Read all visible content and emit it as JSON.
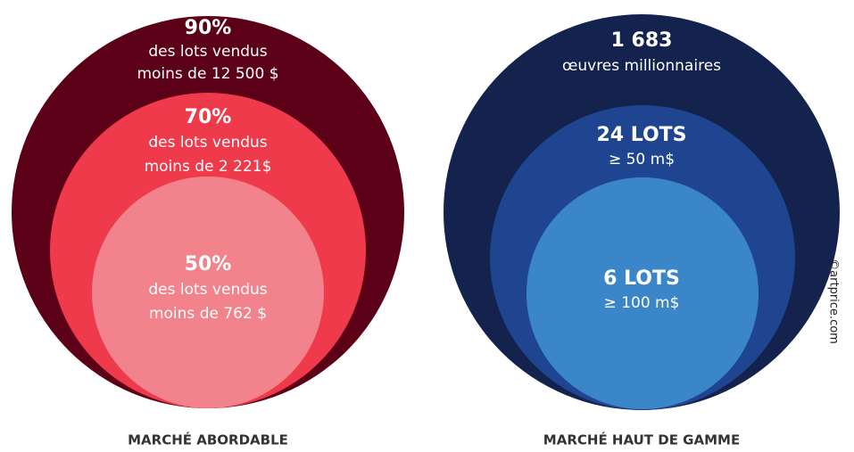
{
  "groups": [
    {
      "title": "MARCHÉ ABORDABLE",
      "circles": [
        {
          "headline": "90%",
          "lines": [
            "des lots vendus",
            "moins de 12 500 $"
          ]
        },
        {
          "headline": "70%",
          "lines": [
            "des lots vendus",
            "moins de 2 221$"
          ]
        },
        {
          "headline": "50%",
          "lines": [
            "des lots vendus",
            "moins de 762 $"
          ]
        }
      ]
    },
    {
      "title": "MARCHÉ HAUT DE GAMME",
      "circles": [
        {
          "headline": "1 683",
          "lines": [
            "œuvres millionnaires"
          ]
        },
        {
          "headline": "24 LOTS",
          "lines": [
            "≥ 50 m$"
          ]
        },
        {
          "headline": "6 LOTS",
          "lines": [
            "≥ 100 m$"
          ]
        }
      ]
    }
  ],
  "credit": "©artprice.com"
}
